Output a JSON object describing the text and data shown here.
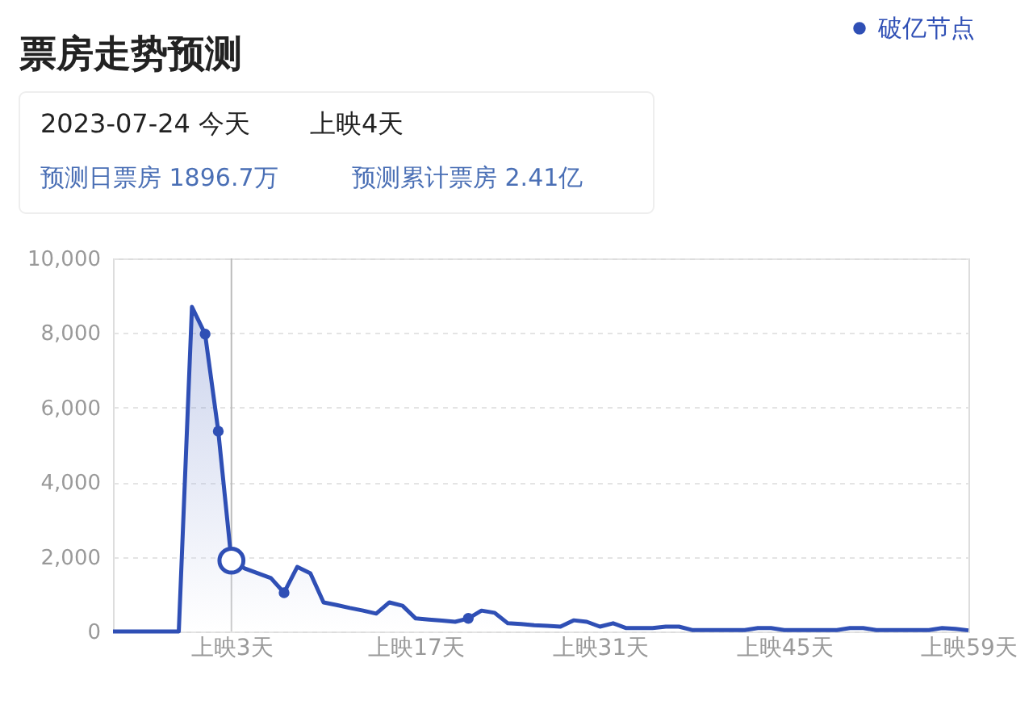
{
  "chart_data": {
    "type": "area",
    "title": "票房走势预测",
    "annotations": [
      "2023-07-24 今天",
      "上映4天",
      "预测日票房 1896.7万",
      "预测累计票房 2.41亿"
    ],
    "categories": [
      null,
      null,
      null,
      null,
      null,
      null,
      null,
      null,
      null,
      "上映3天",
      null,
      null,
      null,
      null,
      null,
      null,
      null,
      null,
      null,
      null,
      null,
      null,
      null,
      "上映17天",
      null,
      null,
      null,
      null,
      null,
      null,
      null,
      null,
      null,
      null,
      null,
      null,
      null,
      "上映31天",
      null,
      null,
      null,
      null,
      null,
      null,
      null,
      null,
      null,
      null,
      null,
      null,
      null,
      "上映45天",
      null,
      null,
      null,
      null,
      null,
      null,
      null,
      null,
      null,
      null,
      null,
      null,
      null,
      "上映59天"
    ],
    "series": [
      {
        "color": "#2f4fb5",
        "values": [
          0,
          0,
          0,
          0,
          0,
          0,
          8700,
          7970,
          5370,
          1900,
          1690,
          1560,
          1430,
          1040,
          1730,
          1560,
          780,
          710,
          630,
          560,
          480,
          780,
          690,
          350,
          320,
          290,
          260,
          350,
          560,
          500,
          220,
          200,
          170,
          150,
          130,
          300,
          260,
          130,
          220,
          90,
          90,
          90,
          130,
          130,
          40,
          40,
          40,
          40,
          40,
          90,
          90,
          40,
          40,
          40,
          40,
          40,
          90,
          90,
          40,
          40,
          40,
          40,
          40,
          90,
          70,
          30
        ]
      },
      {
        "type": "scatter",
        "color": "#ffffff",
        "values": [
          null,
          null,
          null,
          null,
          null,
          null,
          null,
          null,
          null,
          1900,
          null,
          null,
          null,
          null,
          null,
          null,
          null,
          null,
          null,
          null,
          null,
          null,
          null,
          null,
          null,
          null,
          null,
          null,
          null,
          null,
          null,
          null,
          null,
          null,
          null,
          null,
          null,
          null,
          null,
          null,
          null,
          null,
          null,
          null,
          null,
          null,
          null,
          null,
          null,
          null,
          null,
          null,
          null,
          null,
          null,
          null,
          null,
          null,
          null,
          null,
          null,
          null,
          null,
          null,
          null,
          null
        ]
      },
      {
        "type": "scatter",
        "name": "破亿节点",
        "color": "#2f4fb5",
        "values": [
          null,
          null,
          null,
          null,
          null,
          null,
          null,
          7970,
          5370,
          null,
          null,
          null,
          null,
          1040,
          null,
          null,
          null,
          null,
          null,
          null,
          null,
          null,
          null,
          null,
          null,
          null,
          null,
          350,
          null,
          null,
          null,
          null,
          null,
          null,
          null,
          null,
          null,
          null,
          null,
          null,
          null,
          null,
          null,
          null,
          null,
          null,
          null,
          null,
          null,
          null,
          null,
          null,
          null,
          null,
          null,
          null,
          null,
          null,
          null,
          null,
          null,
          null,
          null,
          null,
          null,
          null
        ]
      }
    ],
    "ref_lines": [
      {
        "axis": "x",
        "value": "上映3天",
        "label": null,
        "color": "#bbbbbb"
      }
    ],
    "ylim": [
      0,
      10000
    ],
    "yticks": [
      {
        "value": 0,
        "label": "0"
      },
      {
        "value": 2000,
        "label": "2,000"
      },
      {
        "value": 4000,
        "label": "4,000"
      },
      {
        "value": 6000,
        "label": "6,000"
      },
      {
        "value": 8000,
        "label": "8,000"
      },
      {
        "value": 10000,
        "label": "10,000"
      }
    ],
    "grid": "y",
    "legend": "top right"
  }
}
